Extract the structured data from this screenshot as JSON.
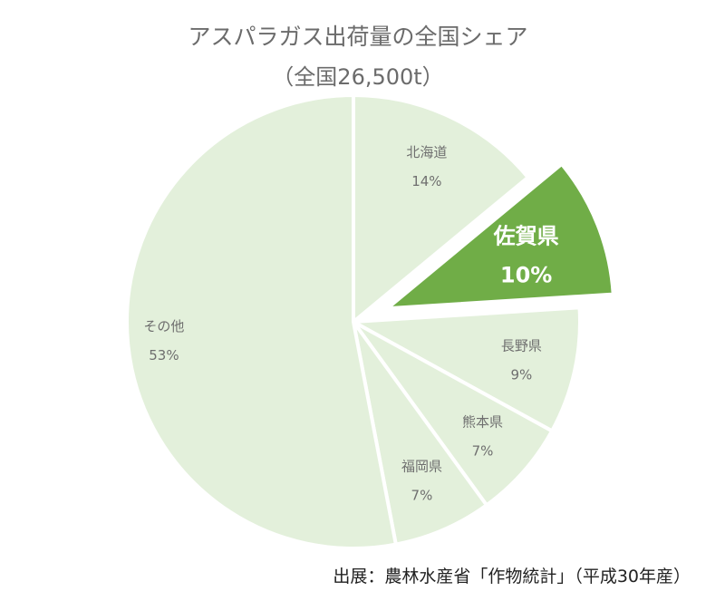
{
  "chart_data": {
    "type": "pie",
    "title": "アスパラガス出荷量の全国シェア",
    "subtitle": "（全国26,500t）",
    "slices": [
      {
        "label": "北海道",
        "value": 14,
        "value_label": "14%",
        "highlight": false
      },
      {
        "label": "佐賀県",
        "value": 10,
        "value_label": "10%",
        "highlight": true
      },
      {
        "label": "長野県",
        "value": 9,
        "value_label": "9%",
        "highlight": false
      },
      {
        "label": "熊本県",
        "value": 7,
        "value_label": "7%",
        "highlight": false
      },
      {
        "label": "福岡県",
        "value": 7,
        "value_label": "7%",
        "highlight": false
      },
      {
        "label": "その他",
        "value": 53,
        "value_label": "53%",
        "highlight": false
      }
    ],
    "start": "12 o'clock",
    "direction": "clockwise",
    "exploded_slice": "佐賀県",
    "colors": {
      "base": "#e3f0db",
      "highlight": "#70ad47",
      "separator": "#ffffff"
    }
  },
  "source": "出展：農林水産省「作物統計」（平成30年産）"
}
